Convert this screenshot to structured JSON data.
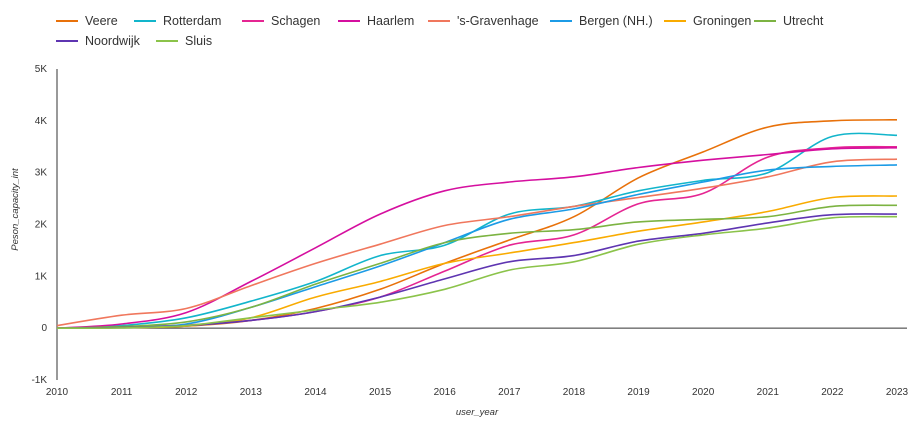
{
  "chart_data": {
    "type": "line",
    "title": "",
    "xlabel": "user_year",
    "ylabel": "Peson_capacity_int",
    "x": [
      2010,
      2011,
      2012,
      2013,
      2014,
      2015,
      2016,
      2017,
      2018,
      2019,
      2020,
      2021,
      2022,
      2023
    ],
    "x_tick_labels": [
      "2010",
      "2011",
      "2012",
      "2013",
      "2014",
      "2015",
      "2016",
      "2017",
      "2018",
      "2019",
      "2020",
      "2021",
      "2022",
      "2023"
    ],
    "ylim": [
      -1000,
      5000
    ],
    "y_ticks": [
      -1000,
      0,
      1000,
      2000,
      3000,
      4000,
      5000
    ],
    "y_tick_labels": [
      "-1K",
      "0",
      "1K",
      "2K",
      "3K",
      "4K",
      "5K"
    ],
    "grid": false,
    "legend_position": "top-left",
    "series": [
      {
        "name": "Veere",
        "color": "#e8710a",
        "values": [
          0,
          10,
          40,
          150,
          380,
          750,
          1250,
          1700,
          2150,
          2900,
          3400,
          3880,
          4000,
          4020
        ]
      },
      {
        "name": "Rotterdam",
        "color": "#12b5cb",
        "values": [
          0,
          50,
          200,
          520,
          900,
          1400,
          1600,
          2200,
          2350,
          2650,
          2850,
          3000,
          3700,
          3720
        ]
      },
      {
        "name": "Schagen",
        "color": "#e52592",
        "values": [
          0,
          20,
          60,
          150,
          320,
          600,
          1100,
          1600,
          1800,
          2400,
          2600,
          3300,
          3480,
          3500
        ]
      },
      {
        "name": "Haarlem",
        "color": "#d50f9f",
        "values": [
          0,
          80,
          300,
          900,
          1550,
          2200,
          2650,
          2820,
          2920,
          3100,
          3240,
          3350,
          3460,
          3480
        ]
      },
      {
        "name": "'s-Gravenhage",
        "color": "#f0775d",
        "values": [
          50,
          250,
          380,
          820,
          1250,
          1620,
          1980,
          2150,
          2350,
          2520,
          2700,
          2920,
          3210,
          3260
        ]
      },
      {
        "name": "Bergen (NH.)",
        "color": "#1c9be6",
        "values": [
          0,
          20,
          80,
          400,
          800,
          1200,
          1650,
          2100,
          2300,
          2580,
          2820,
          3050,
          3120,
          3150
        ]
      },
      {
        "name": "Groningen",
        "color": "#f9ab00",
        "values": [
          0,
          10,
          40,
          200,
          600,
          900,
          1250,
          1450,
          1650,
          1870,
          2050,
          2250,
          2520,
          2550
        ]
      },
      {
        "name": "Utrecht",
        "color": "#7cb342",
        "values": [
          0,
          30,
          120,
          400,
          850,
          1250,
          1650,
          1830,
          1900,
          2050,
          2100,
          2150,
          2350,
          2370
        ]
      },
      {
        "name": "Noordwijk",
        "color": "#5e35b1",
        "values": [
          0,
          10,
          50,
          150,
          320,
          600,
          950,
          1280,
          1400,
          1680,
          1830,
          2030,
          2190,
          2200
        ]
      },
      {
        "name": "Sluis",
        "color": "#8bc34a",
        "values": [
          0,
          5,
          50,
          200,
          350,
          500,
          750,
          1120,
          1280,
          1620,
          1800,
          1930,
          2130,
          2150
        ]
      }
    ]
  }
}
